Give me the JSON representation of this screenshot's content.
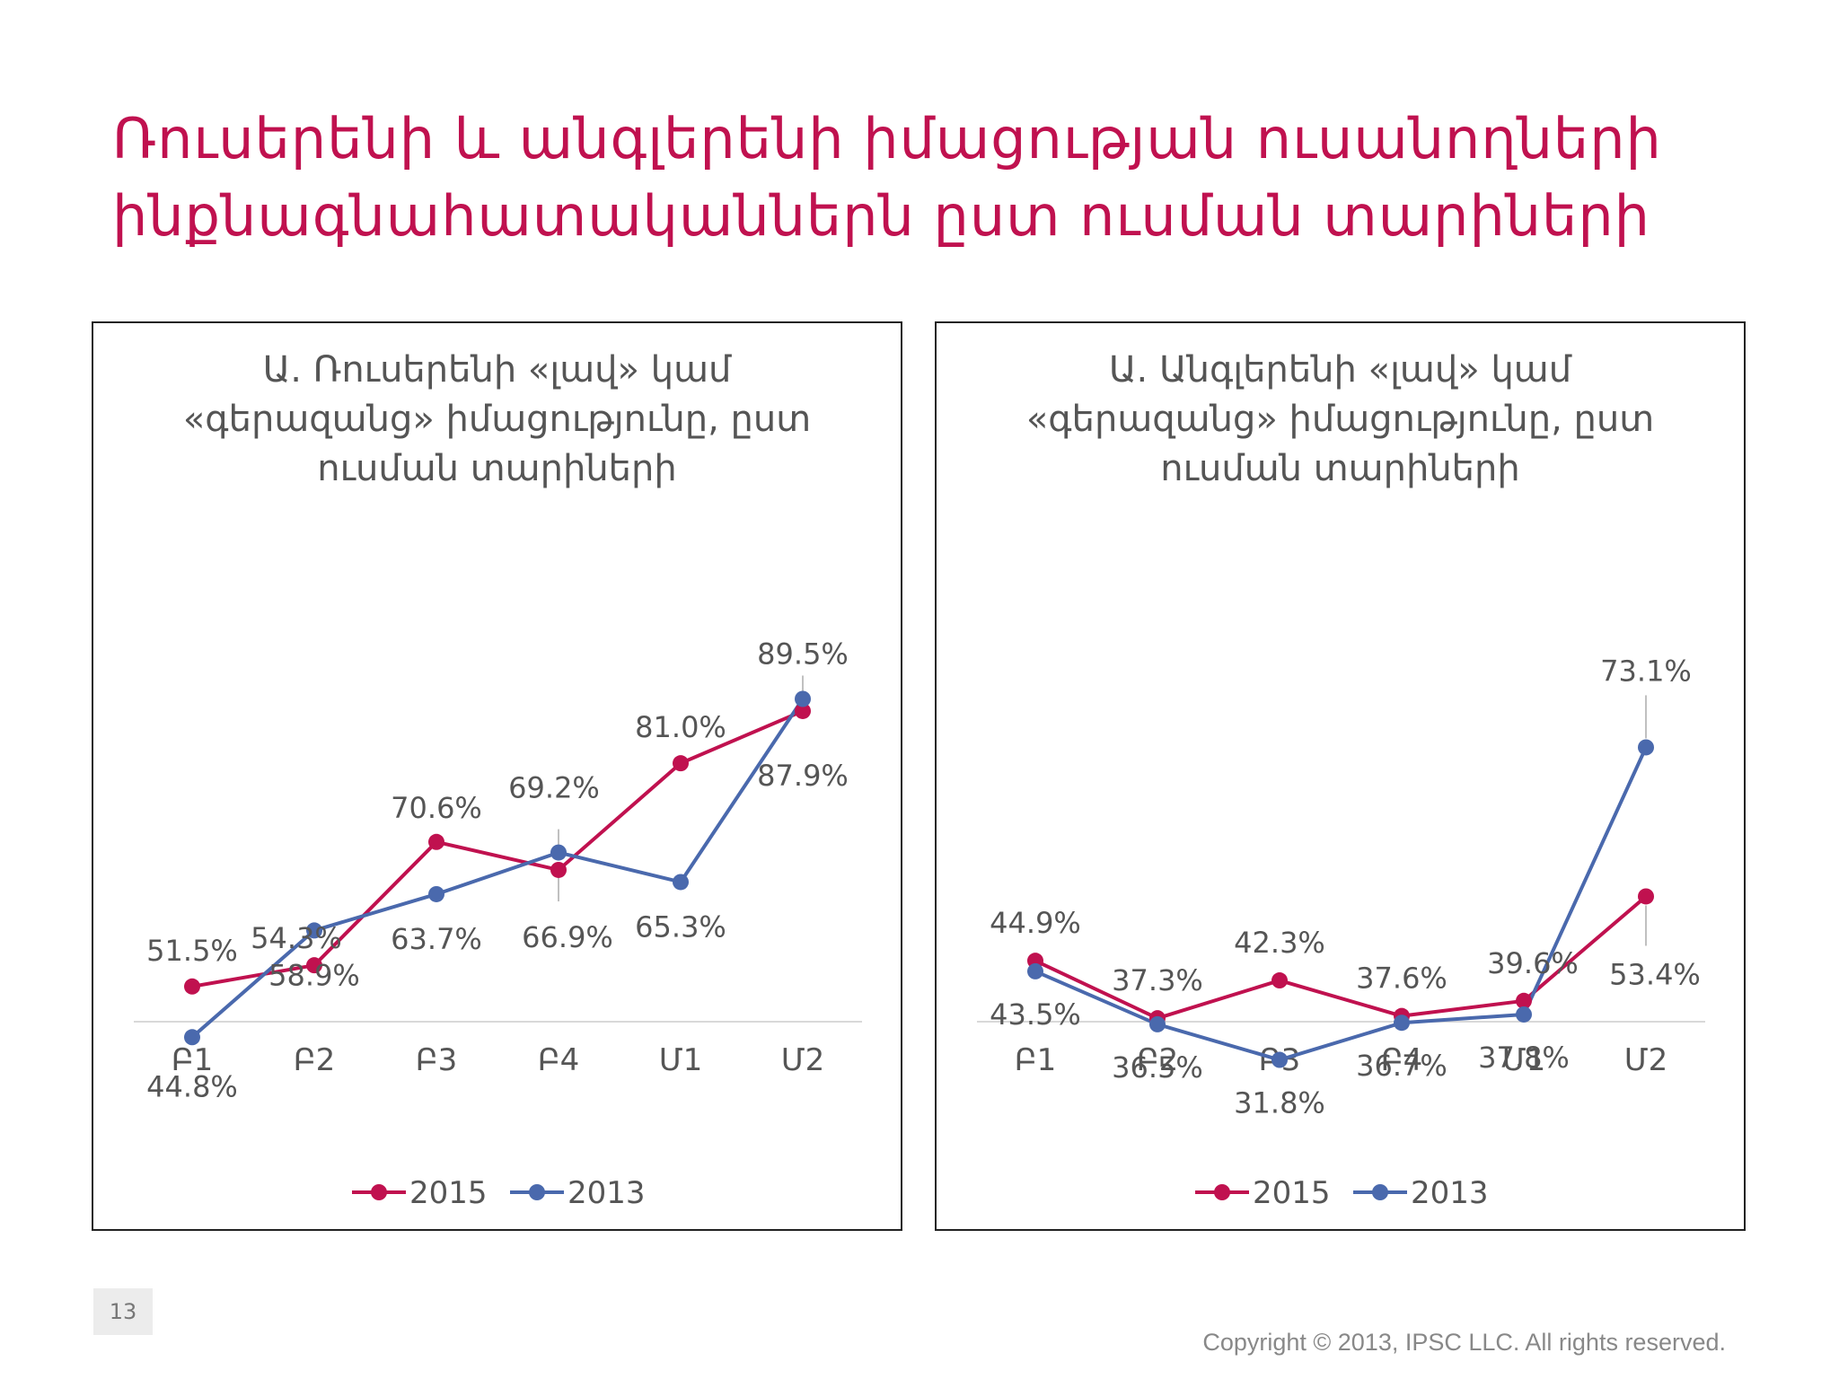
{
  "title": {
    "line1": "Ռուսերենի և անգլերենի իմացության ուսանողների",
    "line2": "ինքնագնահատականներն ըստ ուսման տարիների"
  },
  "page_number": "13",
  "copyright": "Copyright © 2013, IPSC LLC. All rights reserved.",
  "colors": {
    "title": "#c0114f",
    "series_2015": "#c0114f",
    "series_2013": "#4a69ad"
  },
  "charts": [
    {
      "title_lines": [
        "Ա. Ռուսերենի «լավ» կամ",
        "«գերազանց» իմացությունը, ըստ",
        "ուսման տարիների"
      ]
    },
    {
      "title_lines": [
        "Ա. Անգլերենի «լավ» կամ",
        "«գերազանց» իմացությունը, ըստ",
        "ուսման տարիների"
      ]
    }
  ],
  "chart_data": [
    {
      "type": "line",
      "title": "Ա. Ռուսերենի «լավ» կամ «գերազանց» իմացությունը, ըստ ուսման տարիների",
      "categories": [
        "Բ1",
        "Բ2",
        "Բ3",
        "Բ4",
        "Մ1",
        "Մ2"
      ],
      "series": [
        {
          "name": "2015",
          "values": [
            51.5,
            54.3,
            70.6,
            66.9,
            81.0,
            87.9
          ],
          "labels": [
            "51.5%",
            "54.3%",
            "70.6%",
            "66.9%",
            "81.0%",
            "87.9%"
          ]
        },
        {
          "name": "2013",
          "values": [
            44.8,
            58.9,
            63.7,
            69.2,
            65.3,
            89.5
          ],
          "labels": [
            "44.8%",
            "58.9%",
            "63.7%",
            "69.2%",
            "65.3%",
            "89.5%"
          ]
        }
      ],
      "legend": "bottom",
      "grid": false
    },
    {
      "type": "line",
      "title": "Ա. Անգլերենի «լավ» կամ «գերազանց» իմացությունը, ըստ ուսման տարիների",
      "categories": [
        "Բ1",
        "Բ2",
        "Բ3",
        "Բ4",
        "Մ1",
        "Մ2"
      ],
      "series": [
        {
          "name": "2015",
          "values": [
            44.9,
            37.3,
            42.3,
            37.6,
            39.6,
            53.4
          ],
          "labels": [
            "44.9%",
            "37.3%",
            "42.3%",
            "37.6%",
            "39.6%",
            "53.4%"
          ]
        },
        {
          "name": "2013",
          "values": [
            43.5,
            36.5,
            31.8,
            36.7,
            37.8,
            73.1
          ],
          "labels": [
            "43.5%",
            "36.5%",
            "31.8%",
            "36.7%",
            "37.8%",
            "73.1%"
          ]
        }
      ],
      "legend": "bottom",
      "grid": false
    }
  ]
}
